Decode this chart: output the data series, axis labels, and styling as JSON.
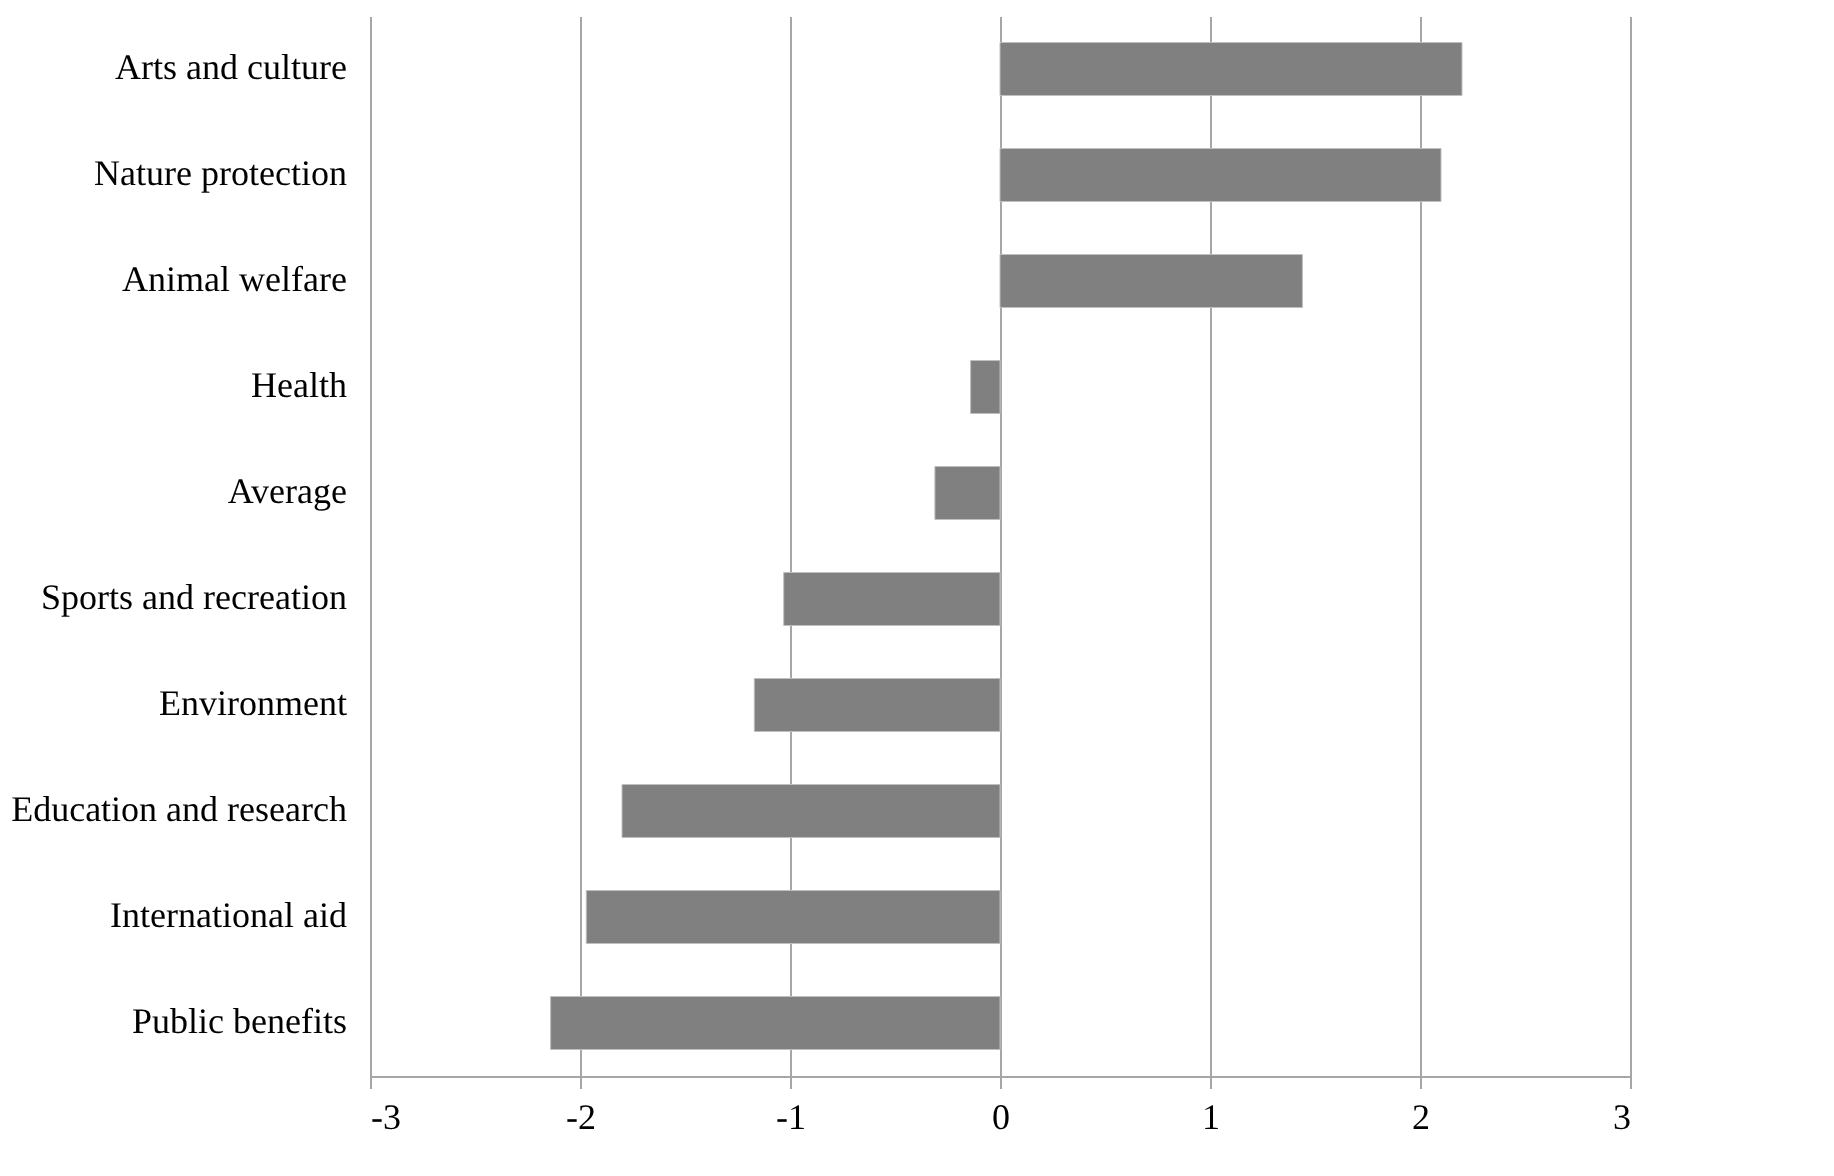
{
  "chart_data": {
    "type": "bar",
    "orientation": "horizontal",
    "categories": [
      "Arts and culture",
      "Nature protection",
      "Animal welfare",
      "Health",
      "Average",
      "Sports and recreation",
      "Environment",
      "Education and research",
      "International aid",
      "Public benefits"
    ],
    "values": [
      2.2,
      2.1,
      1.44,
      -0.14,
      -0.31,
      -1.03,
      -1.17,
      -1.8,
      -1.97,
      -2.14
    ],
    "color": "#808080",
    "xlim": [
      -3,
      3
    ],
    "xticks": [
      -3,
      -2,
      -1,
      0,
      1,
      2,
      3
    ],
    "grid": "x"
  }
}
